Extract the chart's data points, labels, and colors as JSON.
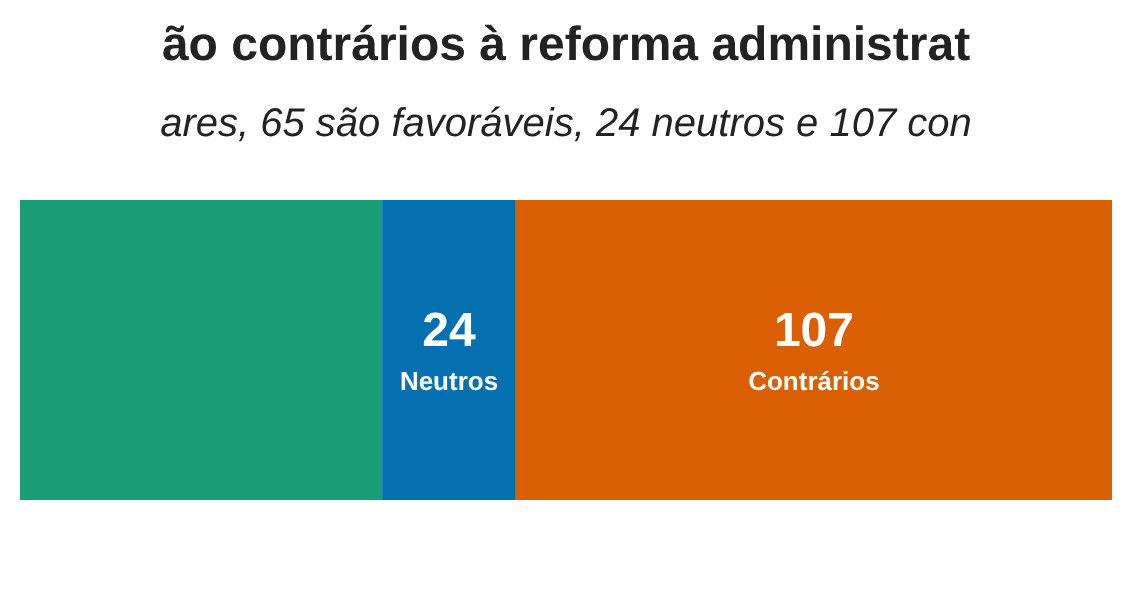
{
  "chart_data": {
    "type": "bar",
    "orientation": "horizontal",
    "stacked": true,
    "title": "ão contrários à reforma administrat",
    "subtitle": "ares, 65 são favoráveis, 24 neutros e 107 con",
    "categories": [
      null
    ],
    "xlim": [
      0,
      196
    ],
    "tick_labels": false,
    "series": [
      {
        "color": "#1b9e77",
        "values": [
          65
        ]
      },
      {
        "name": "Neutros",
        "color": "#0570b0",
        "values": [
          24
        ],
        "value_labels": [
          "24"
        ]
      },
      {
        "name": "Contrários",
        "color": "#d95f02",
        "values": [
          107
        ],
        "value_labels": [
          "107"
        ]
      }
    ]
  }
}
